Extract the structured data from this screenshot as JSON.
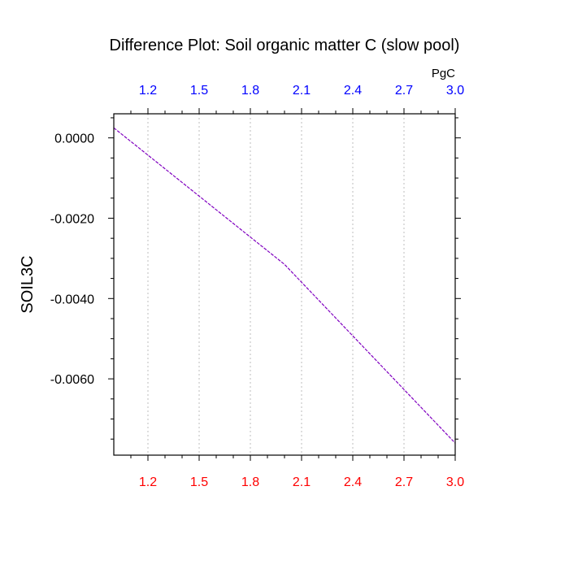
{
  "chart_data": {
    "type": "line",
    "title": "Difference Plot: Soil organic matter C (slow pool)",
    "ylabel": "SOIL3C",
    "top_axis_unit": "PgC",
    "xlim": [
      1.0,
      3.0
    ],
    "ylim": [
      -0.0079,
      0.0006
    ],
    "x_ticks": [
      "1.2",
      "1.5",
      "1.8",
      "2.1",
      "2.4",
      "2.7",
      "3.0"
    ],
    "y_ticks": [
      "0.0000",
      "-0.0020",
      "-0.0040",
      "-0.0060"
    ],
    "grid": "vertical dotted lines at x ticks",
    "bottom_tick_color": "#ff0000",
    "top_tick_color": "#0000ff",
    "line_color": "#8000c0",
    "series": [
      {
        "x": [
          1.0,
          2.0,
          3.0
        ],
        "y": [
          0.00025,
          -0.00315,
          -0.0076
        ]
      }
    ]
  }
}
